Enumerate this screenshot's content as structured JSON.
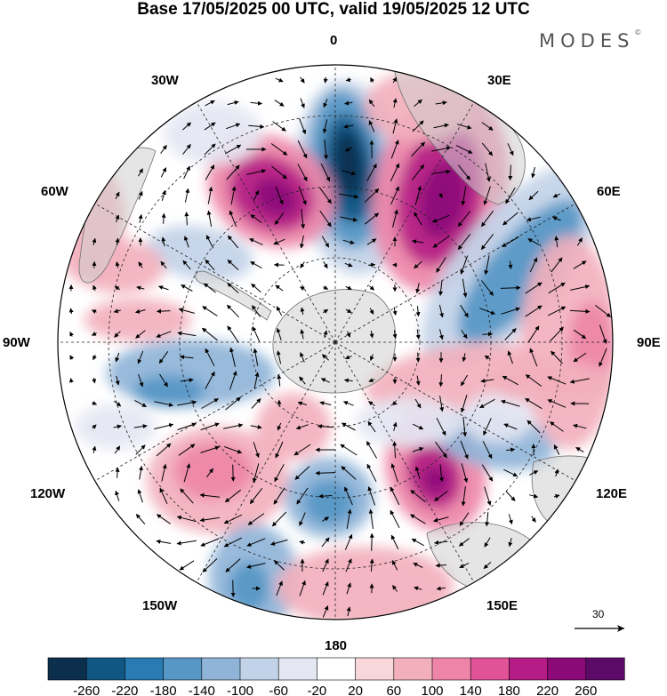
{
  "title": "Base 17/05/2025 00 UTC, valid 19/05/2025 12 UTC",
  "brand": "MODES",
  "brand_mark": "©",
  "longitude_labels": {
    "lon_0": "0",
    "lon_30e": "30E",
    "lon_60e": "60E",
    "lon_90e": "90E",
    "lon_120e": "120E",
    "lon_150e": "150E",
    "lon_180": "180",
    "lon_150w": "150W",
    "lon_120w": "120W",
    "lon_90w": "90W",
    "lon_60w": "60W",
    "lon_30w": "30W"
  },
  "reference_vector_label": "30",
  "colorbar": {
    "labels": [
      "-260",
      "-220",
      "-180",
      "-140",
      "-100",
      "-60",
      "-20",
      "20",
      "60",
      "100",
      "140",
      "180",
      "220",
      "260"
    ],
    "colors": [
      "#0d2f4e",
      "#115784",
      "#2a7bb3",
      "#5697c6",
      "#8fb4d8",
      "#c2d2e8",
      "#e4e6f2",
      "#ffffff",
      "#f8d6da",
      "#f2b0bd",
      "#ee85a8",
      "#e05497",
      "#b61c85",
      "#8b0a78",
      "#5b0a68"
    ]
  },
  "colors": {
    "land": "#d0d0d0",
    "coast": "#707070",
    "grid": "#222222",
    "arrow": "#000000"
  }
}
